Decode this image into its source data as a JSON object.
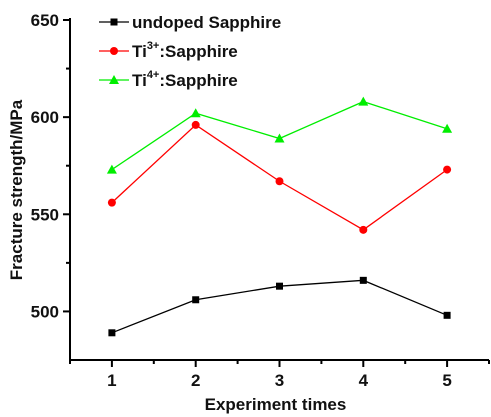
{
  "chart_data": {
    "type": "line",
    "x": [
      1,
      2,
      3,
      4,
      5
    ],
    "xlabel": "Experiment times",
    "ylabel": "Fracture strength/MPa",
    "xlim": [
      0.5,
      5.5
    ],
    "ylim": [
      475,
      650
    ],
    "xticks": [
      "1",
      "2",
      "3",
      "4",
      "5"
    ],
    "yticks": [
      "500",
      "550",
      "600",
      "650"
    ],
    "legend_position": "top-left",
    "grid": false,
    "series": [
      {
        "name_parts": {
          "pre": "undoped Sapphire",
          "sup": "",
          "post": ""
        },
        "color": "#000000",
        "marker": "square",
        "values": [
          489,
          506,
          513,
          516,
          498
        ]
      },
      {
        "name_parts": {
          "pre": "Ti",
          "sup": "3+",
          "post": ":Sapphire"
        },
        "color": "#ff0000",
        "marker": "circle",
        "values": [
          556,
          596,
          567,
          542,
          573
        ]
      },
      {
        "name_parts": {
          "pre": "Ti",
          "sup": "4+",
          "post": ":Sapphire"
        },
        "color": "#00ee00",
        "marker": "triangle",
        "values": [
          573,
          602,
          589,
          608,
          594
        ]
      }
    ]
  }
}
